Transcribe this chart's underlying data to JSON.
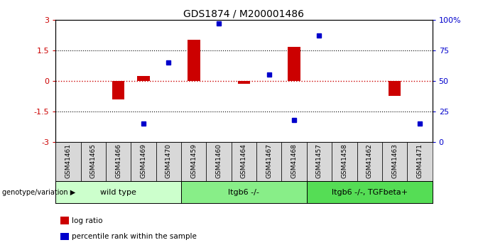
{
  "title": "GDS1874 / M200001486",
  "samples": [
    "GSM41461",
    "GSM41465",
    "GSM41466",
    "GSM41469",
    "GSM41470",
    "GSM41459",
    "GSM41460",
    "GSM41464",
    "GSM41467",
    "GSM41468",
    "GSM41457",
    "GSM41458",
    "GSM41462",
    "GSM41463",
    "GSM41471"
  ],
  "log_ratio": [
    0,
    0,
    -0.9,
    0.25,
    0,
    2.0,
    0,
    -0.15,
    0,
    1.65,
    0,
    0,
    0,
    -0.75,
    0
  ],
  "percentile_rank": [
    null,
    null,
    null,
    15,
    65,
    null,
    97,
    null,
    55,
    18,
    87,
    null,
    null,
    null,
    15
  ],
  "groups": [
    {
      "label": "wild type",
      "start": 0,
      "end": 4,
      "color": "#ccffcc"
    },
    {
      "label": "ltgb6 -/-",
      "start": 5,
      "end": 9,
      "color": "#88ee88"
    },
    {
      "label": "ltgb6 -/-, TGFbeta+",
      "start": 10,
      "end": 14,
      "color": "#55dd55"
    }
  ],
  "ylim": [
    -3,
    3
  ],
  "y2lim": [
    0,
    100
  ],
  "y2_ticks": [
    0,
    25,
    50,
    75,
    100
  ],
  "y2_labels": [
    "0",
    "25",
    "50",
    "75",
    "100%"
  ],
  "y1_ticks": [
    -3,
    -1.5,
    0,
    1.5,
    3
  ],
  "y1_labels": [
    "-3",
    "-1.5",
    "0",
    "1.5",
    "3"
  ],
  "dotted_lines": [
    -1.5,
    1.5
  ],
  "zero_line_color": "#cc0000",
  "bar_color": "#cc0000",
  "dot_color": "#0000cc",
  "bar_width": 0.5,
  "legend": [
    {
      "label": "log ratio",
      "color": "#cc0000"
    },
    {
      "label": "percentile rank within the sample",
      "color": "#0000cc"
    }
  ],
  "genotype_label": "genotype/variation",
  "background_color": "#ffffff",
  "sample_bg_color": "#d8d8d8"
}
